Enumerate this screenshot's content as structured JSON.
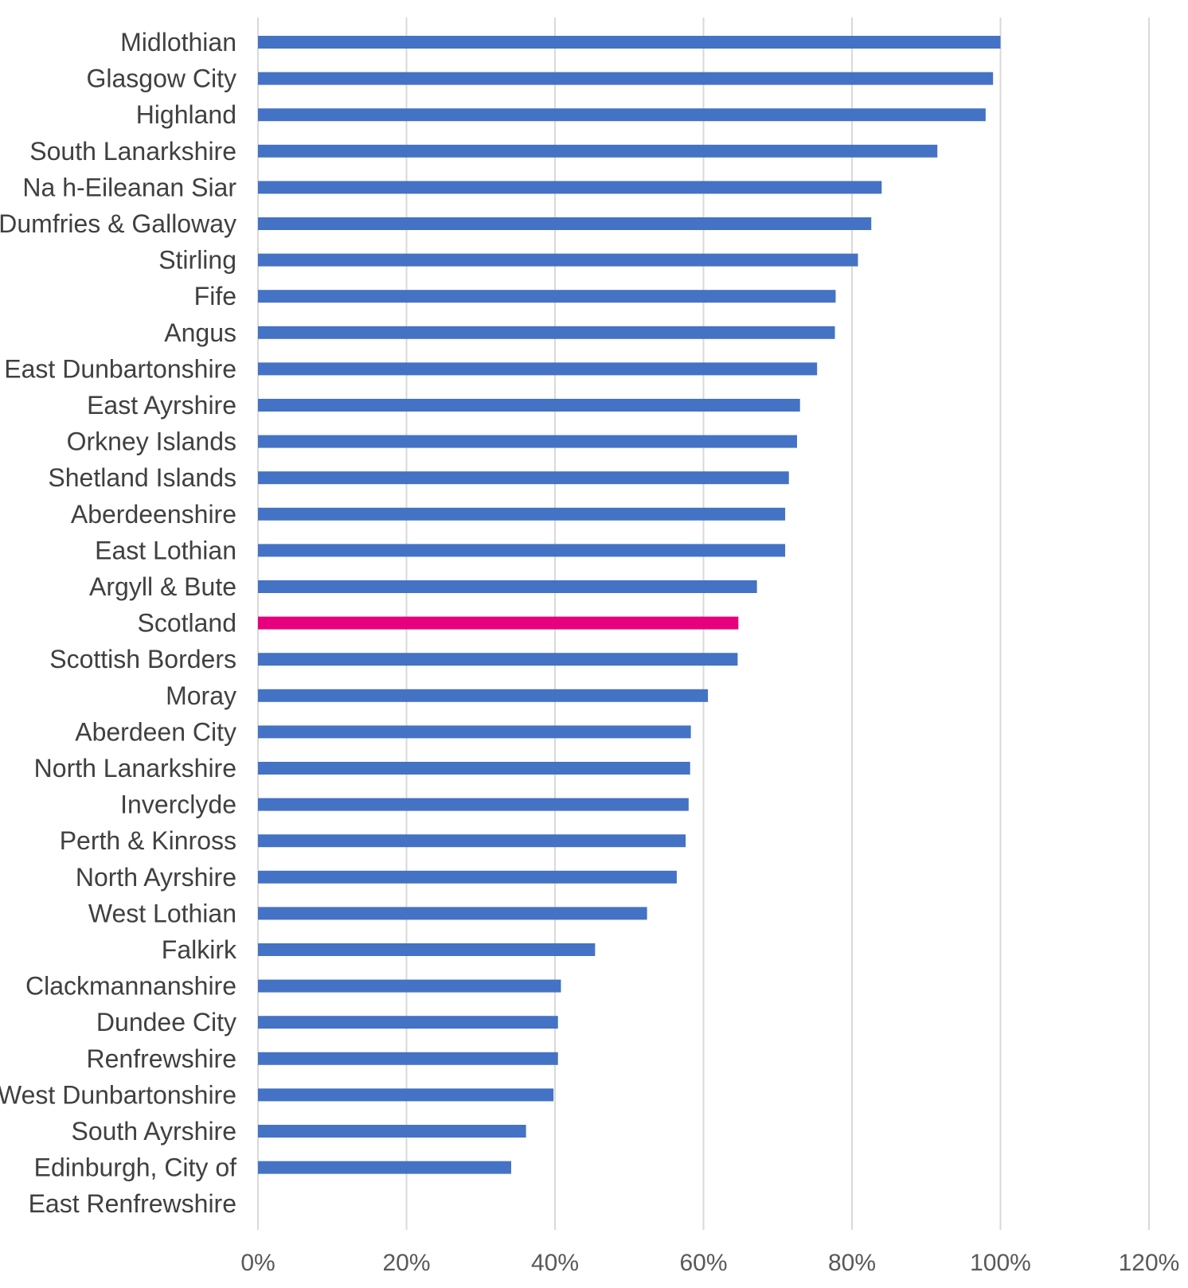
{
  "chart_data": {
    "type": "bar",
    "orientation": "horizontal",
    "title": "",
    "xlabel": "",
    "ylabel": "",
    "xlim": [
      0,
      1.2
    ],
    "x_ticks": [
      0,
      0.2,
      0.4,
      0.6,
      0.8,
      1.0,
      1.2
    ],
    "x_tick_labels": [
      "0%",
      "20%",
      "40%",
      "60%",
      "80%",
      "100%",
      "120%"
    ],
    "grid": "vertical",
    "legend": "none",
    "colors": {
      "default": "#4472c4",
      "highlight": "#e6007e",
      "grid": "#d9d9d9",
      "text": "#404040"
    },
    "highlight_category": "Scotland",
    "categories": [
      "Midlothian",
      "Glasgow City",
      "Highland",
      "South Lanarkshire",
      "Na h-Eileanan Siar",
      "Dumfries & Galloway",
      "Stirling",
      "Fife",
      "Angus",
      "East Dunbartonshire",
      "East Ayrshire",
      "Orkney Islands",
      "Shetland Islands",
      "Aberdeenshire",
      "East Lothian",
      "Argyll & Bute",
      "Scotland",
      "Scottish Borders",
      "Moray",
      "Aberdeen City",
      "North Lanarkshire",
      "Inverclyde",
      "Perth & Kinross",
      "North Ayrshire",
      "West Lothian",
      "Falkirk",
      "Clackmannanshire",
      "Dundee City",
      "Renfrewshire",
      "West Dunbartonshire",
      "South Ayrshire",
      "Edinburgh, City of",
      "East Renfrewshire"
    ],
    "values": [
      1.0,
      0.99,
      0.98,
      0.915,
      0.84,
      0.826,
      0.808,
      0.778,
      0.777,
      0.753,
      0.73,
      0.726,
      0.715,
      0.71,
      0.71,
      0.672,
      0.647,
      0.646,
      0.606,
      0.583,
      0.582,
      0.58,
      0.576,
      0.564,
      0.524,
      0.454,
      0.408,
      0.404,
      0.404,
      0.398,
      0.361,
      0.341,
      0.0
    ]
  }
}
